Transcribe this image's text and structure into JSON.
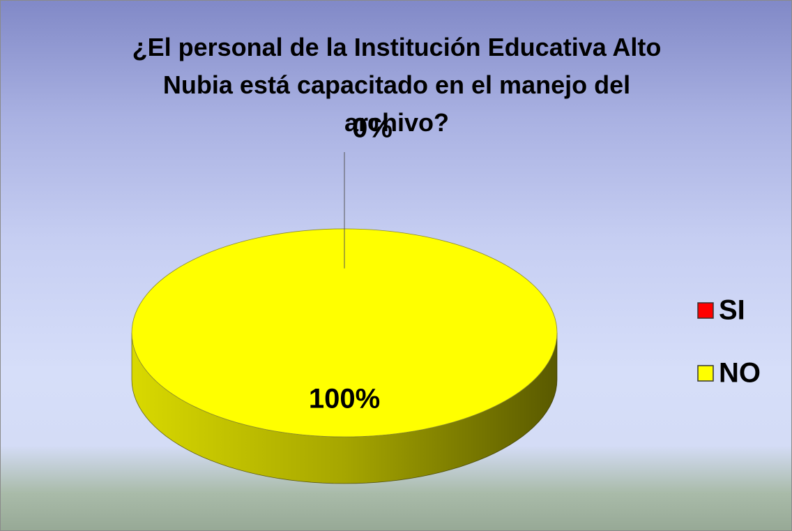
{
  "chart_data": {
    "type": "pie",
    "title": "¿El personal de la Institución Educativa Alto Nubia está capacitado en el manejo del archivo?",
    "categories": [
      "SI",
      "NO"
    ],
    "values": [
      0,
      100
    ],
    "value_labels": [
      "0%",
      "100%"
    ],
    "colors": [
      "#ff0000",
      "#ffff00"
    ],
    "legend": "right",
    "three_d": true
  }
}
